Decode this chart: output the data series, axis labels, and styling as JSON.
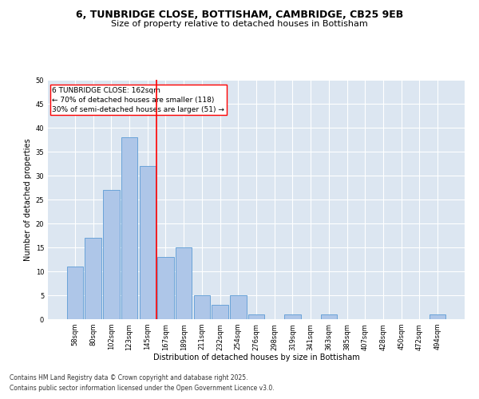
{
  "title_line1": "6, TUNBRIDGE CLOSE, BOTTISHAM, CAMBRIDGE, CB25 9EB",
  "title_line2": "Size of property relative to detached houses in Bottisham",
  "categories": [
    "58sqm",
    "80sqm",
    "102sqm",
    "123sqm",
    "145sqm",
    "167sqm",
    "189sqm",
    "211sqm",
    "232sqm",
    "254sqm",
    "276sqm",
    "298sqm",
    "319sqm",
    "341sqm",
    "363sqm",
    "385sqm",
    "407sqm",
    "428sqm",
    "450sqm",
    "472sqm",
    "494sqm"
  ],
  "values": [
    11,
    17,
    27,
    38,
    32,
    13,
    15,
    5,
    3,
    5,
    1,
    0,
    1,
    0,
    1,
    0,
    0,
    0,
    0,
    0,
    1
  ],
  "bar_color": "#aec6e8",
  "bar_edge_color": "#5b9bd5",
  "background_color": "#dce6f1",
  "grid_color": "#ffffff",
  "vline_color": "red",
  "annotation_text": "6 TUNBRIDGE CLOSE: 162sqm\n← 70% of detached houses are smaller (118)\n30% of semi-detached houses are larger (51) →",
  "annotation_box_color": "white",
  "annotation_box_edge_color": "red",
  "xlabel": "Distribution of detached houses by size in Bottisham",
  "ylabel": "Number of detached properties",
  "ylim": [
    0,
    50
  ],
  "yticks": [
    0,
    5,
    10,
    15,
    20,
    25,
    30,
    35,
    40,
    45,
    50
  ],
  "footnote_line1": "Contains HM Land Registry data © Crown copyright and database right 2025.",
  "footnote_line2": "Contains public sector information licensed under the Open Government Licence v3.0.",
  "title_fontsize": 9,
  "subtitle_fontsize": 8,
  "axis_label_fontsize": 7,
  "tick_fontsize": 6,
  "annotation_fontsize": 6.5,
  "footnote_fontsize": 5.5
}
